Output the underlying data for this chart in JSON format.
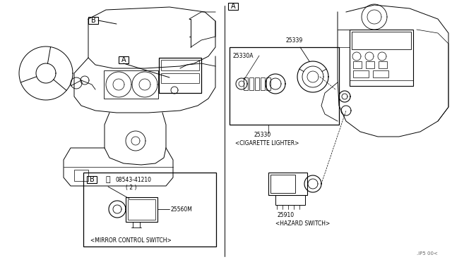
{
  "bg_color": "#ffffff",
  "line_color": "#000000",
  "text_color": "#000000",
  "fig_width": 6.4,
  "fig_height": 3.72,
  "dpi": 100,
  "watermark": ".IP5 00<",
  "label_A": "A",
  "label_B": "B",
  "part_25339": "25339",
  "part_25330A": "25330A",
  "part_25330": "25330",
  "part_25330_name": "<CIGARETTE LIGHTER>",
  "part_25910": "25910",
  "part_25910_name": "<HAZARD SWITCH>",
  "part_08543": "08543-41210",
  "part_08543_qty": "( 2 )",
  "part_25560M": "25560M",
  "part_mirror_name": "<MIRROR CONTROL SWITCH>"
}
